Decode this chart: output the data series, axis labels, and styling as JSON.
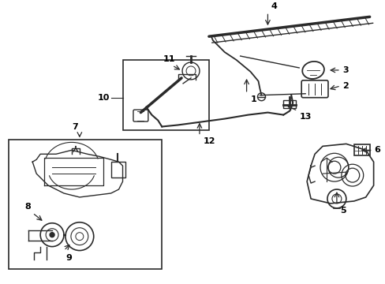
{
  "bg_color": "#ffffff",
  "line_color": "#2a2a2a",
  "label_color": "#000000",
  "figsize": [
    4.89,
    3.6
  ],
  "dpi": 100,
  "border_color": "#444444",
  "gray_fill": "#f5f5f5"
}
